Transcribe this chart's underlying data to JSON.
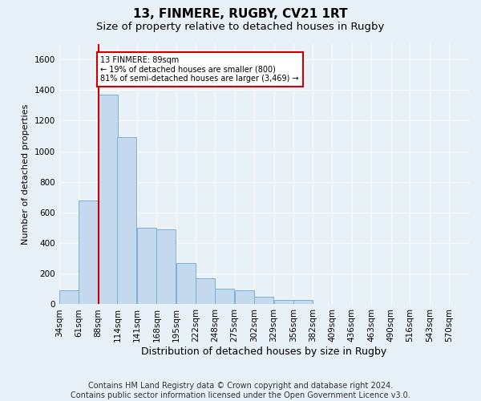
{
  "title_line1": "13, FINMERE, RUGBY, CV21 1RT",
  "title_line2": "Size of property relative to detached houses in Rugby",
  "xlabel": "Distribution of detached houses by size in Rugby",
  "ylabel": "Number of detached properties",
  "bins": [
    34,
    61,
    88,
    114,
    141,
    168,
    195,
    222,
    248,
    275,
    302,
    329,
    356,
    382,
    409,
    436,
    463,
    490,
    516,
    543,
    570
  ],
  "values": [
    90,
    680,
    1370,
    1090,
    500,
    490,
    270,
    170,
    100,
    90,
    50,
    30,
    30,
    5,
    0,
    0,
    0,
    0,
    0,
    0,
    0
  ],
  "bar_color": "#c5d9ee",
  "bar_edge_color": "#7aafd4",
  "property_bin_index": 2,
  "property_line_color": "#cc0000",
  "annotation_text": "13 FINMERE: 89sqm\n← 19% of detached houses are smaller (800)\n81% of semi-detached houses are larger (3,469) →",
  "annotation_box_color": "#ffffff",
  "annotation_box_edge": "#cc0000",
  "ylim": [
    0,
    1700
  ],
  "yticks": [
    0,
    200,
    400,
    600,
    800,
    1000,
    1200,
    1400,
    1600
  ],
  "footer_line1": "Contains HM Land Registry data © Crown copyright and database right 2024.",
  "footer_line2": "Contains public sector information licensed under the Open Government Licence v3.0.",
  "bg_color": "#e8f0f8",
  "plot_bg_color": "#e8f0f8",
  "grid_color": "#ffffff",
  "title1_fontsize": 11,
  "title2_fontsize": 9.5,
  "xlabel_fontsize": 9,
  "ylabel_fontsize": 8,
  "tick_fontsize": 7.5,
  "footer_fontsize": 7
}
